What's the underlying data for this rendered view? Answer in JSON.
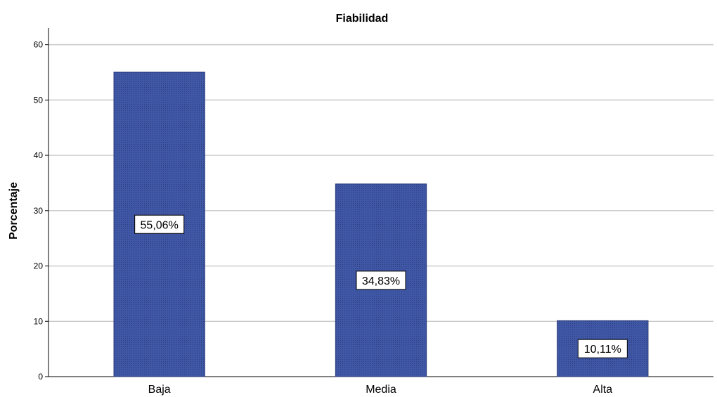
{
  "chart_data": {
    "type": "bar",
    "title": "Fiabilidad",
    "ylabel": "Porcentaje",
    "xlabel": "",
    "categories": [
      "Baja",
      "Media",
      "Alta"
    ],
    "values": [
      55.06,
      34.83,
      10.11
    ],
    "data_labels": [
      "55,06%",
      "34,83%",
      "10,11%"
    ],
    "ylim": [
      0,
      63
    ],
    "yticks": [
      0,
      10,
      20,
      30,
      40,
      50,
      60
    ],
    "grid": true,
    "legend": "none",
    "colors": {
      "bar_fill": "#3f57a4",
      "bar_stroke": "#2b3d7a",
      "grid": "#c8c8c8",
      "axis": "#000000"
    }
  }
}
